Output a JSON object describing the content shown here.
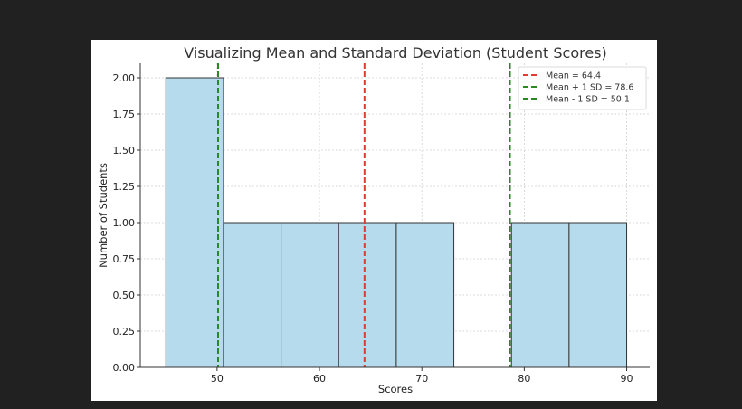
{
  "chart_data": {
    "type": "bar",
    "title": "Visualizing Mean and Standard Deviation (Student Scores)",
    "xlabel": "Scores",
    "ylabel": "Number of Students",
    "xlim": [
      42.5,
      92.25
    ],
    "ylim": [
      0,
      2.1
    ],
    "xticks": [
      50,
      60,
      70,
      80,
      90
    ],
    "yticks": [
      "0.00",
      "0.25",
      "0.50",
      "0.75",
      "1.00",
      "1.25",
      "1.50",
      "1.75",
      "2.00"
    ],
    "grid": true,
    "bins": [
      {
        "start": 45.0,
        "end": 50.625,
        "count": 2
      },
      {
        "start": 50.625,
        "end": 56.25,
        "count": 1
      },
      {
        "start": 56.25,
        "end": 61.875,
        "count": 1
      },
      {
        "start": 61.875,
        "end": 67.5,
        "count": 1
      },
      {
        "start": 67.5,
        "end": 73.125,
        "count": 1
      },
      {
        "start": 73.125,
        "end": 78.75,
        "count": 0
      },
      {
        "start": 78.75,
        "end": 84.375,
        "count": 1
      },
      {
        "start": 84.375,
        "end": 90.0,
        "count": 1
      }
    ],
    "bar_color": "#b5dbed",
    "bar_edge": "#333333",
    "reference_lines": [
      {
        "name": "Mean = 64.4",
        "x": 64.4,
        "color": "#e03c31"
      },
      {
        "name": "Mean + 1 SD = 78.6",
        "x": 78.6,
        "color": "#2a8a21"
      },
      {
        "name": "Mean - 1 SD = 50.1",
        "x": 50.1,
        "color": "#2a8a21"
      }
    ],
    "legend_position": "top-right"
  }
}
